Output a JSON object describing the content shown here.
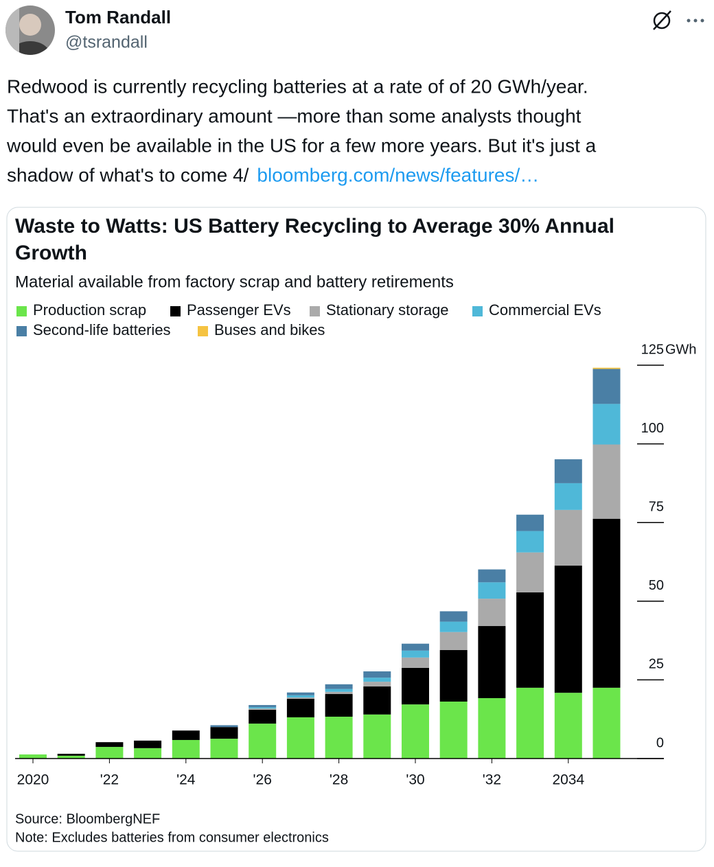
{
  "tweet": {
    "author": "Tom Randall",
    "handle": "@tsrandall",
    "lines": [
      "Redwood is currently recycling batteries at a rate of of 20 GWh/year.",
      "That's an extraordinary amount —more than some analysts thought",
      "would even be available in the US for a few more years. But it's just a",
      "shadow of what's to come 4/"
    ],
    "link": "bloomberg.com/news/features/…"
  },
  "chart_data": {
    "type": "stacked_bar",
    "title": [
      "Waste to Watts: US Battery Recycling to Average 30% Annual",
      "Growth"
    ],
    "subtitle": "Material available from factory scrap and battery retirements",
    "y_unit": "GWh",
    "categories": [
      "2020",
      null,
      "'22",
      null,
      "'24",
      null,
      "'26",
      null,
      "'28",
      null,
      "'30",
      null,
      "'32",
      null,
      "2034",
      null
    ],
    "series": [
      {
        "name": "Production scrap",
        "color": "#6be54b",
        "values": [
          1.3,
          0.9,
          3.7,
          3.3,
          5.9,
          6.3,
          11.1,
          13.1,
          13.3,
          14.0,
          17.2,
          18.1,
          19.2,
          22.5,
          20.9,
          22.5
        ]
      },
      {
        "name": "Passenger EVs",
        "color": "#000000",
        "values": [
          0,
          0.6,
          1.5,
          2.4,
          3.0,
          3.7,
          4.4,
          5.9,
          7.2,
          8.9,
          11.6,
          16.4,
          22.9,
          30.3,
          40.4,
          53.7
        ]
      },
      {
        "name": "Stationary storage",
        "color": "#aaaaaa",
        "values": [
          0,
          0,
          0,
          0,
          0,
          0,
          0.4,
          0.4,
          0.7,
          1.5,
          3.3,
          5.7,
          8.7,
          12.7,
          17.7,
          23.6
        ]
      },
      {
        "name": "Commercial EVs",
        "color": "#4fb8d8",
        "values": [
          0,
          0,
          0,
          0,
          0,
          0,
          0.4,
          0.7,
          0.9,
          1.3,
          2.2,
          3.3,
          5.2,
          6.8,
          8.5,
          12.9
        ]
      },
      {
        "name": "Second-life batteries",
        "color": "#4a7fa5",
        "values": [
          0,
          0,
          0,
          0,
          0,
          0.6,
          0.7,
          0.9,
          1.5,
          2.0,
          2.2,
          3.3,
          4.1,
          5.2,
          7.6,
          11.1
        ]
      },
      {
        "name": "Buses and bikes",
        "color": "#f5c342",
        "values": [
          0,
          0,
          0,
          0,
          0,
          0,
          0,
          0,
          0,
          0,
          0,
          0,
          0,
          0,
          0,
          0.4
        ]
      }
    ],
    "ylim": [
      0,
      125
    ],
    "yticks": [
      0,
      25,
      50,
      75,
      100,
      125
    ],
    "source": "Source: BloombergNEF",
    "note": "Note: Excludes batteries from consumer electronics"
  }
}
